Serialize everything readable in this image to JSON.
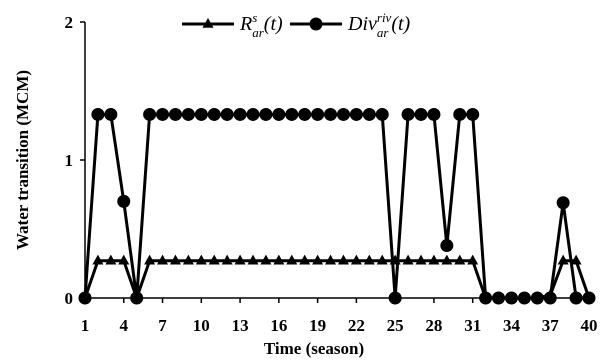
{
  "chart_data": {
    "type": "line",
    "title": "",
    "xlabel": "Time (season)",
    "ylabel": "Water transition (MCM)",
    "xlim": [
      1,
      40
    ],
    "ylim": [
      0,
      2
    ],
    "x_ticks": [
      1,
      4,
      7,
      10,
      13,
      16,
      19,
      22,
      25,
      28,
      31,
      34,
      37,
      40
    ],
    "y_ticks": [
      0,
      1,
      2
    ],
    "grid": false,
    "legend_position": "top",
    "x": [
      1,
      2,
      3,
      4,
      5,
      6,
      7,
      8,
      9,
      10,
      11,
      12,
      13,
      14,
      15,
      16,
      17,
      18,
      19,
      20,
      21,
      22,
      23,
      24,
      25,
      26,
      27,
      28,
      29,
      30,
      31,
      32,
      33,
      34,
      35,
      36,
      37,
      38,
      39,
      40
    ],
    "series": [
      {
        "name": "R^s_ar(t)",
        "legend": {
          "base": "R",
          "sup": "s",
          "sub": "ar",
          "arg": "(t)"
        },
        "marker": "triangle",
        "color": "#000000",
        "values": [
          0,
          0.27,
          0.27,
          0.27,
          0,
          0.27,
          0.27,
          0.27,
          0.27,
          0.27,
          0.27,
          0.27,
          0.27,
          0.27,
          0.27,
          0.27,
          0.27,
          0.27,
          0.27,
          0.27,
          0.27,
          0.27,
          0.27,
          0.27,
          0.27,
          0.27,
          0.27,
          0.27,
          0.27,
          0.27,
          0.27,
          0,
          0,
          0,
          0,
          0,
          0.02,
          0.27,
          0.27,
          0
        ]
      },
      {
        "name": "Div^riv_ar(t)",
        "legend": {
          "base": "Div",
          "sup": "riv",
          "sub": "ar",
          "arg": "(t)"
        },
        "marker": "circle",
        "color": "#000000",
        "values": [
          0,
          1.33,
          1.33,
          0.7,
          0,
          1.33,
          1.33,
          1.33,
          1.33,
          1.33,
          1.33,
          1.33,
          1.33,
          1.33,
          1.33,
          1.33,
          1.33,
          1.33,
          1.33,
          1.33,
          1.33,
          1.33,
          1.33,
          1.33,
          0,
          1.33,
          1.33,
          1.33,
          0.38,
          1.33,
          1.33,
          0,
          0,
          0,
          0,
          0,
          0,
          0.69,
          0,
          0
        ]
      }
    ]
  }
}
